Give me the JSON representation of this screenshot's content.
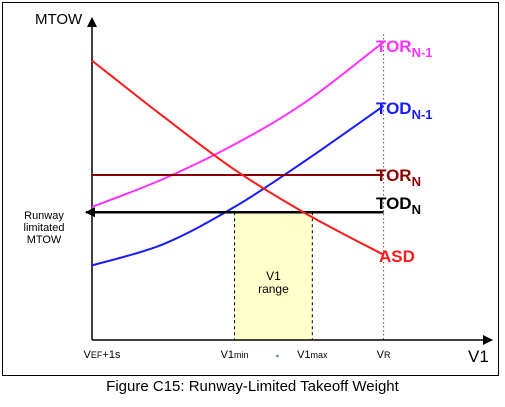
{
  "caption": "Figure C15: Runway-Limited Takeoff Weight",
  "colors": {
    "tor_n1": "#ff33ff",
    "tod_n1": "#1a1aff",
    "tor_n": "#8b0000",
    "tod_n": "#000000",
    "asd": "#ff1a1a",
    "range_fill": "#ffffcc"
  },
  "chart_data": {
    "type": "line",
    "y_axis_label": "MTOW",
    "x_axis_label": "V1",
    "x_ticks": [
      {
        "main": "V",
        "sub": "EF",
        "tail": "+1s",
        "x": 0
      },
      {
        "main": "V1",
        "sub": "min",
        "tail": "",
        "x": 44
      },
      {
        "main": "V1",
        "sub": "max",
        "tail": "",
        "x": 68
      },
      {
        "main": "V",
        "sub": "R",
        "tail": "",
        "x": 90
      }
    ],
    "y_annotation": [
      "Runway",
      "limitated",
      "MTOW"
    ],
    "range_label": [
      "V1",
      "range"
    ],
    "xlim": [
      0,
      100
    ],
    "ylim": [
      0,
      100
    ],
    "series": [
      {
        "key": "tor_n1",
        "main": "TOR",
        "sub": "N-1",
        "x": [
          0,
          22,
          44,
          66,
          90
        ],
        "y": [
          38,
          48.5,
          61.5,
          77.5,
          100
        ]
      },
      {
        "key": "tod_n1",
        "main": "TOD",
        "sub": "N-1",
        "x": [
          0,
          22,
          44,
          66,
          90
        ],
        "y": [
          16,
          24,
          38,
          55.5,
          76
        ]
      },
      {
        "key": "tor_n",
        "main": "TOR",
        "sub": "N",
        "x": [
          0,
          90
        ],
        "y": [
          50,
          50
        ]
      },
      {
        "key": "tod_n",
        "main": "TOD",
        "sub": "N",
        "x": [
          0,
          90
        ],
        "y": [
          36,
          36
        ]
      },
      {
        "key": "asd",
        "main": "ASD",
        "sub": "",
        "x": [
          0,
          22,
          44,
          66,
          90
        ],
        "y": [
          93,
          72,
          52,
          35.5,
          20
        ]
      }
    ]
  }
}
